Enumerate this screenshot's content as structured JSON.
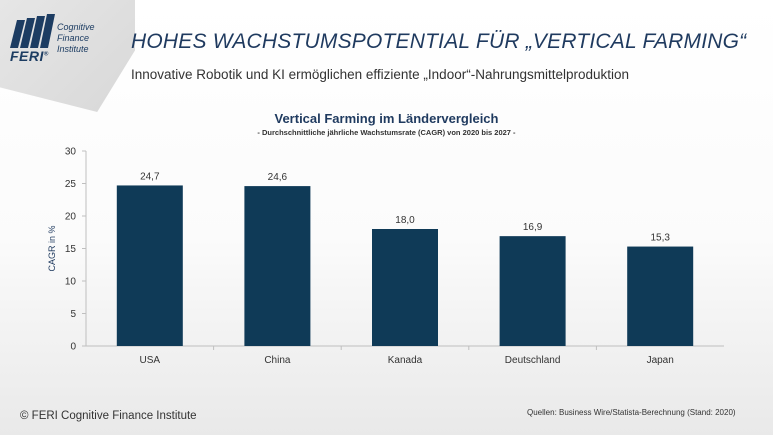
{
  "logo": {
    "brand": "FERI",
    "registered": "®",
    "line1": "Cognitive",
    "line2": "Finance",
    "line3": "Institute"
  },
  "header": {
    "title": "HOHES WACHSTUMSPOTENTIAL FÜR „VERTICAL FARMING“",
    "subtitle": "Innovative Robotik und KI ermöglichen effiziente „Indoor“-Nahrungsmittelproduktion"
  },
  "chart_data": {
    "type": "bar",
    "title": "Vertical Farming im Ländervergleich",
    "subtitle": "-  Durchschnittliche jährliche Wachstumsrate (CAGR) von 2020 bis 2027 -",
    "categories": [
      "USA",
      "China",
      "Kanada",
      "Deutschland",
      "Japan"
    ],
    "values": [
      24.7,
      24.6,
      18.0,
      16.9,
      15.3
    ],
    "data_labels": [
      "24,7",
      "24,6",
      "18,0",
      "16,9",
      "15,3"
    ],
    "xlabel": "",
    "ylabel": "CAGR in %",
    "ylim": [
      0,
      30
    ],
    "yticks": [
      0,
      5,
      10,
      15,
      20,
      25,
      30
    ],
    "bar_color": "#0f3a57",
    "grid": false,
    "legend": "none"
  },
  "footer": {
    "copyright": "© FERI Cognitive Finance Institute",
    "source": "Quellen: Business Wire/Statista-Berechnung (Stand: 2020)"
  }
}
